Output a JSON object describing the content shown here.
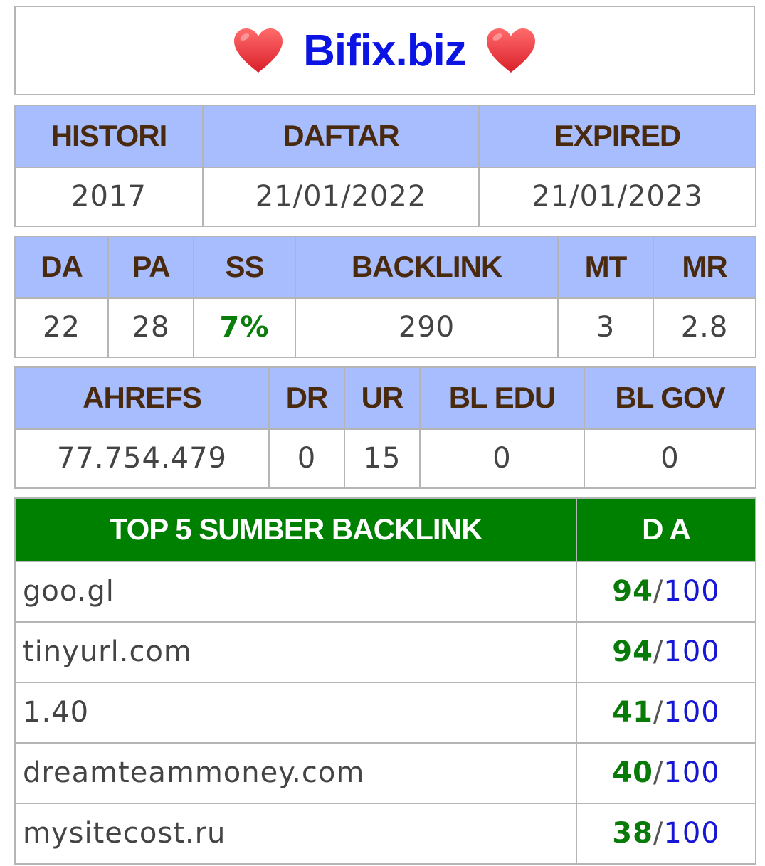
{
  "site": {
    "title": "Bifix.biz",
    "heart_icon": "heart-icon",
    "title_color": "#0b14e3",
    "heart_color": "#ee3b3b"
  },
  "dates": {
    "headers": [
      "HISTORI",
      "DAFTAR",
      "EXPIRED"
    ],
    "values": [
      "2017",
      "21/01/2022",
      "21/01/2023"
    ]
  },
  "moz": {
    "headers": [
      "DA",
      "PA",
      "SS",
      "BACKLINK",
      "MT",
      "MR"
    ],
    "values": [
      "22",
      "28",
      "7%",
      "290",
      "3",
      "2.8"
    ]
  },
  "ahrefs": {
    "headers": [
      "AHREFS",
      "DR",
      "UR",
      "BL EDU",
      "BL GOV"
    ],
    "values": [
      "77.754.479",
      "0",
      "15",
      "0",
      "0"
    ]
  },
  "backlinks": {
    "header_source": "TOP 5 SUMBER BACKLINK",
    "header_da": "D A",
    "slash": "/",
    "rows": [
      {
        "source": "goo.gl",
        "score": "94",
        "max": "100"
      },
      {
        "source": "tinyurl.com",
        "score": "94",
        "max": "100"
      },
      {
        "source": "1.40",
        "score": "41",
        "max": "100"
      },
      {
        "source": "dreamteammoney.com",
        "score": "40",
        "max": "100"
      },
      {
        "source": "mysitecost.ru",
        "score": "38",
        "max": "100"
      }
    ]
  },
  "colors": {
    "header_bg": "#a7bdfd",
    "header_text": "#4a2a0f",
    "backlink_header_bg": "#008000",
    "score_green": "#087a08",
    "max_blue": "#1616d6",
    "border": "#b5b5b5"
  }
}
